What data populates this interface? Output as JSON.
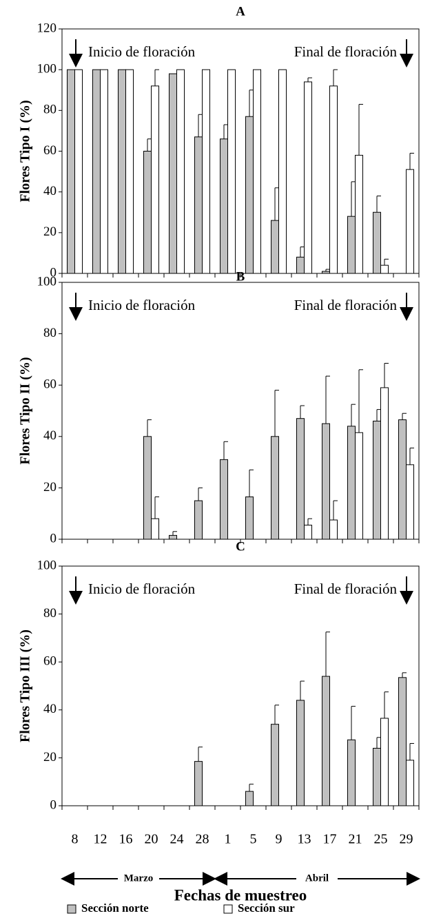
{
  "chart_data": [
    {
      "type": "bar",
      "title": "A",
      "ylabel": "Flores Tipo I (%)",
      "ylim": [
        0,
        120
      ],
      "yticks": [
        0,
        20,
        40,
        60,
        80,
        100,
        120
      ],
      "annotations": [
        "Inicio de floración",
        "Final de floración"
      ],
      "series": [
        {
          "color": "#c0c0c0",
          "values": [
            100,
            100,
            100,
            60,
            98,
            67,
            66,
            77,
            26,
            8,
            1,
            28,
            30,
            0
          ],
          "errors": [
            0,
            0,
            0,
            6,
            0,
            11,
            7,
            13,
            16,
            5,
            1,
            17,
            8,
            0
          ]
        },
        {
          "color": "#ffffff",
          "values": [
            100,
            100,
            100,
            92,
            100,
            100,
            100,
            100,
            100,
            94,
            92,
            58,
            4,
            51
          ],
          "errors": [
            0,
            0,
            0,
            8,
            0,
            0,
            0,
            0,
            0,
            2,
            8,
            25,
            3,
            8
          ]
        }
      ]
    },
    {
      "type": "bar",
      "title": "B",
      "ylabel": "Flores Tipo II (%)",
      "ylim": [
        0,
        100
      ],
      "yticks": [
        0,
        20,
        40,
        60,
        80,
        100
      ],
      "annotations": [
        "Inicio de floración",
        "Final de floración"
      ],
      "series": [
        {
          "color": "#c0c0c0",
          "values": [
            0,
            0,
            0,
            40,
            1.5,
            15,
            31,
            16.5,
            40,
            47,
            45,
            44,
            46,
            46.5
          ],
          "errors": [
            0,
            0,
            0,
            6.5,
            1.5,
            5,
            7,
            10.5,
            18,
            5,
            18.5,
            8.5,
            4.5,
            2.5
          ]
        },
        {
          "color": "#ffffff",
          "values": [
            0,
            0,
            0,
            8,
            0,
            0,
            0,
            0,
            0,
            5.5,
            7.5,
            41.5,
            59,
            29
          ],
          "errors": [
            0,
            0,
            0,
            8.5,
            0,
            0,
            0,
            0,
            0,
            2.5,
            7.5,
            24.5,
            9.5,
            6.5
          ]
        }
      ]
    },
    {
      "type": "bar",
      "title": "C",
      "ylabel": "Flores Tipo III (%)",
      "ylim": [
        0,
        100
      ],
      "yticks": [
        0,
        20,
        40,
        60,
        80,
        100
      ],
      "annotations": [
        "Inicio de floración",
        "Final de floración"
      ],
      "categories": [
        "8",
        "12",
        "16",
        "20",
        "24",
        "28",
        "1",
        "5",
        "9",
        "13",
        "17",
        "21",
        "25",
        "29"
      ],
      "months": [
        "Marzo",
        "Abril"
      ],
      "xlabel": "Fechas de muestreo",
      "legend": "bottom",
      "series": [
        {
          "name": "Sección norte",
          "color": "#c0c0c0",
          "values": [
            0,
            0,
            0,
            0,
            0,
            18.5,
            0,
            6,
            34,
            44,
            54,
            27.5,
            24,
            53.5
          ],
          "errors": [
            0,
            0,
            0,
            0,
            0,
            6,
            0,
            3,
            8,
            8,
            18.5,
            14,
            4.5,
            2
          ]
        },
        {
          "name": "Sección sur",
          "color": "#ffffff",
          "values": [
            0,
            0,
            0,
            0,
            0,
            0,
            0,
            0,
            0,
            0,
            0,
            0,
            36.5,
            19
          ],
          "errors": [
            0,
            0,
            0,
            0,
            0,
            0,
            0,
            0,
            0,
            0,
            0,
            0,
            11,
            7
          ]
        }
      ]
    }
  ]
}
